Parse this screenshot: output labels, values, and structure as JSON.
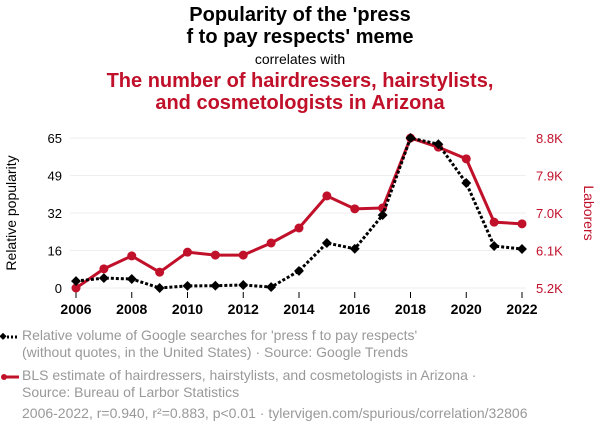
{
  "title_line1": "Popularity of the 'press",
  "title_line2": "f to pay respects' meme",
  "correlates": "correlates with",
  "subtitle_line1": "The number of hairdressers, hairstylists,",
  "subtitle_line2": "and cosmetologists in Arizona",
  "colors": {
    "series1": "#000000",
    "series2": "#c0102a",
    "legend_text": "#999999"
  },
  "chart_data": {
    "type": "line",
    "x": [
      2006,
      2007,
      2008,
      2009,
      2010,
      2011,
      2012,
      2013,
      2014,
      2015,
      2016,
      2017,
      2018,
      2019,
      2020,
      2021,
      2022
    ],
    "xticks": [
      "2006",
      "2008",
      "2010",
      "2012",
      "2014",
      "2016",
      "2018",
      "2020",
      "2022"
    ],
    "ylabel_left": "Relative popularity",
    "ylabel_right": "Laborers",
    "yticks_left": [
      "0",
      "16",
      "32",
      "49",
      "65"
    ],
    "yticks_right": [
      "5.2K",
      "6.1K",
      "7.0K",
      "7.9K",
      "8.8K"
    ],
    "ylim_left": [
      0,
      65
    ],
    "ylim_right": [
      5200,
      8800
    ],
    "grid": true,
    "series": [
      {
        "name": "Relative volume of Google searches for 'press f to pay respects' (without quotes, in the United States) · Source: Google Trends",
        "axis": "left",
        "style": "dotted, diamond markers",
        "values": [
          3,
          4.3,
          3.9,
          0,
          0.9,
          1,
          1.3,
          0.4,
          7.4,
          19.5,
          17,
          31.6,
          65,
          62.3,
          45.5,
          18.2,
          16.9
        ]
      },
      {
        "name": "BLS estimate of hairdressers, hairstylists, and cosmetologists in Arizona · Source: Bureau of Larbor Statistics",
        "axis": "right",
        "style": "solid, circle markers",
        "values": [
          5200,
          5660,
          5970,
          5580,
          6060,
          5990,
          5990,
          6280,
          6640,
          7410,
          7100,
          7120,
          8800,
          8580,
          8300,
          6780,
          6740
        ]
      }
    ]
  },
  "legend": {
    "s1_line1": "Relative volume of Google searches for 'press f to pay respects'",
    "s1_line2": "(without quotes, in the United States) · Source: Google Trends",
    "s2_line1": "BLS estimate of hairdressers, hairstylists, and cosmetologists in Arizona ·",
    "s2_line2": "Source: Bureau of Larbor Statistics"
  },
  "footnote": "2006-2022, r=0.940, r²=0.883, p<0.01 · tylervigen.com/spurious/correlation/32806"
}
